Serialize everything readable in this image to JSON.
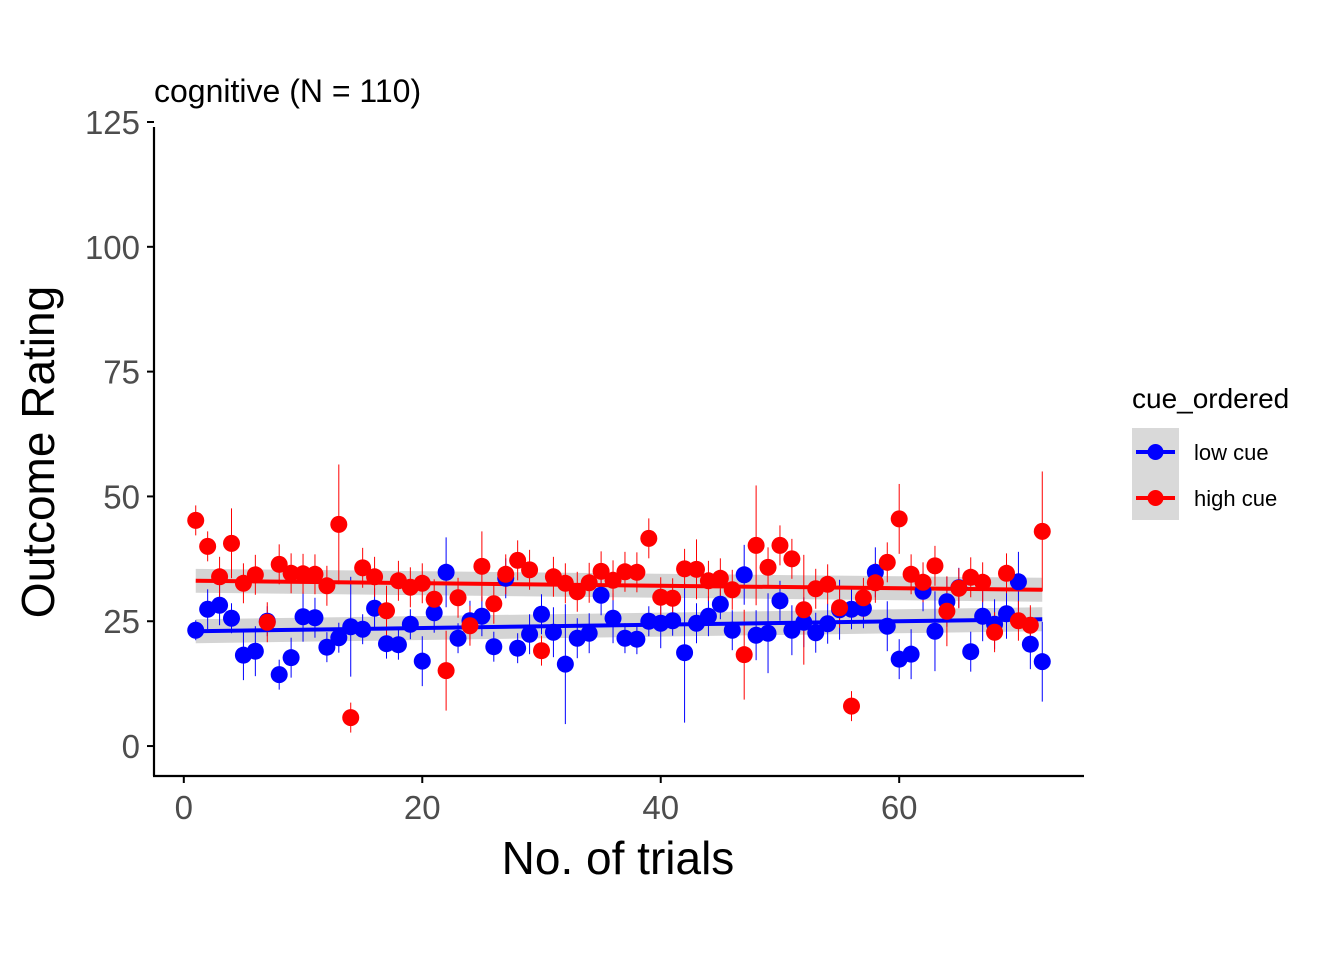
{
  "chart_data": {
    "type": "scatter",
    "title": "cognitive (N = 110)",
    "xlabel": "No. of trials",
    "ylabel": "Outcome Rating",
    "xlim": [
      -2.5,
      75.5
    ],
    "ylim": [
      -6,
      125
    ],
    "xticks": [
      0,
      20,
      40,
      60
    ],
    "yticks": [
      0,
      25,
      50,
      75,
      100,
      125
    ],
    "grid": false,
    "legend": {
      "title": "cue_ordered",
      "position": "right",
      "entries": [
        {
          "label": "low cue",
          "color": "#0000ff"
        },
        {
          "label": "high cue",
          "color": "#ff0000"
        }
      ]
    },
    "series": [
      {
        "name": "low cue",
        "color": "#0000ff",
        "x": [
          1,
          2,
          3,
          4,
          5,
          6,
          7,
          8,
          9,
          10,
          11,
          12,
          13,
          14,
          15,
          16,
          17,
          18,
          19,
          20,
          21,
          22,
          23,
          24,
          25,
          26,
          27,
          28,
          29,
          30,
          31,
          32,
          33,
          34,
          35,
          36,
          37,
          38,
          39,
          40,
          41,
          42,
          43,
          44,
          45,
          46,
          47,
          48,
          49,
          50,
          51,
          52,
          53,
          54,
          55,
          56,
          57,
          58,
          59,
          60,
          61,
          62,
          63,
          64,
          65,
          66,
          67,
          68,
          69,
          70,
          71,
          72
        ],
        "y": [
          23.2,
          27.4,
          28.2,
          25.6,
          18.2,
          19.0,
          25.0,
          14.3,
          17.7,
          25.9,
          25.7,
          19.8,
          21.7,
          23.9,
          23.4,
          27.6,
          20.5,
          20.3,
          24.4,
          17.0,
          26.7,
          34.8,
          21.6,
          25.1,
          26.0,
          19.9,
          33.6,
          19.6,
          22.4,
          26.4,
          22.8,
          16.4,
          21.6,
          22.6,
          30.2,
          25.6,
          21.6,
          21.4,
          25.0,
          24.6,
          25.1,
          18.7,
          24.6,
          26.0,
          28.4,
          23.2,
          34.3,
          22.2,
          22.6,
          29.1,
          23.2,
          24.8,
          22.7,
          24.5,
          27.3,
          27.4,
          27.6,
          34.8,
          24.0,
          17.4,
          18.4,
          31.0,
          23.0,
          28.9,
          31.7,
          18.9,
          26.0,
          24.4,
          26.5,
          32.9,
          20.4,
          16.9
        ],
        "err": [
          2,
          4,
          4,
          3,
          5,
          5,
          3,
          3,
          4,
          5,
          4,
          3,
          3,
          10,
          3,
          4,
          3,
          3,
          3,
          5,
          4,
          7,
          3,
          4,
          4,
          3,
          4,
          3,
          4,
          4,
          5,
          12,
          4,
          4,
          4,
          5,
          3,
          3,
          3,
          5,
          3,
          14,
          4,
          4,
          3,
          4,
          6,
          5,
          8,
          4,
          5,
          5,
          4,
          4,
          6,
          4,
          4,
          5,
          5,
          4,
          5,
          4,
          8,
          5,
          4,
          4,
          5,
          5,
          5,
          6,
          5,
          8
        ],
        "trend": [
          23.0,
          25.4
        ]
      },
      {
        "name": "high cue",
        "color": "#ff0000",
        "x": [
          1,
          2,
          3,
          4,
          5,
          6,
          7,
          8,
          9,
          10,
          11,
          12,
          13,
          14,
          15,
          16,
          17,
          18,
          19,
          20,
          21,
          22,
          23,
          24,
          25,
          26,
          27,
          28,
          29,
          30,
          31,
          32,
          33,
          34,
          35,
          36,
          37,
          38,
          39,
          40,
          41,
          42,
          43,
          44,
          45,
          46,
          47,
          48,
          49,
          50,
          51,
          52,
          53,
          54,
          55,
          56,
          57,
          58,
          59,
          60,
          61,
          62,
          63,
          64,
          65,
          66,
          67,
          68,
          69,
          70,
          71,
          72
        ],
        "y": [
          45.2,
          40.0,
          33.9,
          40.6,
          32.6,
          34.3,
          24.8,
          36.4,
          34.6,
          34.5,
          34.4,
          32.1,
          44.4,
          5.7,
          35.7,
          33.9,
          27.1,
          33.1,
          31.8,
          32.6,
          29.4,
          15.1,
          29.7,
          24.1,
          36.0,
          28.5,
          34.4,
          37.2,
          35.3,
          19.1,
          33.9,
          32.6,
          30.9,
          32.7,
          35.0,
          33.2,
          34.9,
          34.8,
          41.6,
          29.8,
          29.6,
          35.5,
          35.4,
          33.1,
          33.6,
          31.3,
          18.3,
          40.2,
          35.8,
          40.2,
          37.5,
          27.3,
          31.5,
          32.4,
          27.7,
          8.0,
          29.7,
          32.7,
          36.8,
          45.5,
          34.4,
          32.8,
          36.1,
          27.0,
          31.6,
          33.8,
          32.8,
          22.8,
          34.6,
          25.1,
          24.2,
          43.0
        ],
        "err": [
          3,
          3,
          4,
          7,
          4,
          4,
          4,
          4,
          4,
          4,
          4,
          4,
          12,
          3,
          4,
          4,
          5,
          4,
          4,
          4,
          4,
          8,
          4,
          4,
          7,
          4,
          4,
          4,
          4,
          3,
          4,
          4,
          4,
          4,
          4,
          4,
          4,
          4,
          4,
          4,
          4,
          4,
          6,
          4,
          4,
          4,
          9,
          12,
          4,
          4,
          4,
          11,
          4,
          4,
          4,
          3,
          4,
          4,
          4,
          7,
          4,
          4,
          4,
          7,
          4,
          4,
          4,
          4,
          4,
          4,
          4,
          12
        ],
        "trend": [
          33.1,
          31.3
        ]
      }
    ]
  }
}
